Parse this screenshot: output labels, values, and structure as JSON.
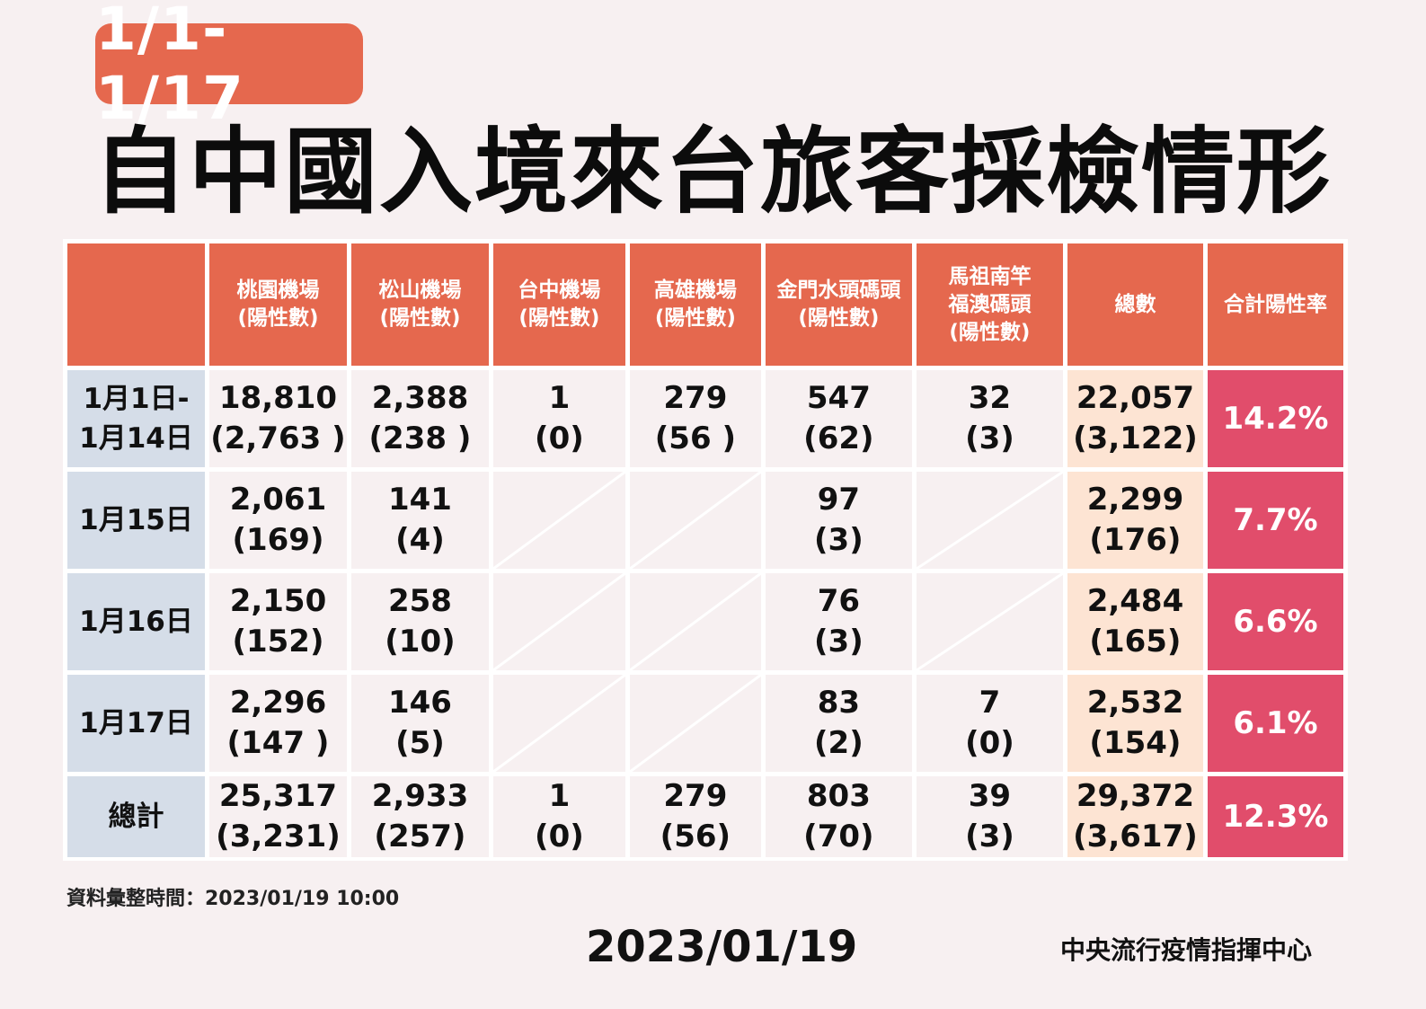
{
  "date_badge": "1/1-1/17",
  "title": "自中國入境來台旅客採檢情形",
  "table": {
    "headers": [
      {
        "lines": [
          ""
        ]
      },
      {
        "lines": [
          "桃園機場",
          "(陽性數)"
        ]
      },
      {
        "lines": [
          "松山機場",
          "(陽性數)"
        ]
      },
      {
        "lines": [
          "台中機場",
          "(陽性數)"
        ]
      },
      {
        "lines": [
          "高雄機場",
          "(陽性數)"
        ]
      },
      {
        "lines": [
          "金門水頭碼頭",
          "(陽性數)"
        ]
      },
      {
        "lines": [
          "馬祖南竿",
          "福澳碼頭",
          "(陽性數)"
        ]
      },
      {
        "lines": [
          "總數"
        ]
      },
      {
        "lines": [
          "合計陽性率"
        ]
      }
    ],
    "rows": [
      {
        "label": [
          "1月1日-",
          "1月14日"
        ],
        "cells": [
          [
            "18,810",
            "(2,763 )"
          ],
          [
            "2,388",
            "(238 )"
          ],
          [
            "1",
            "(0)"
          ],
          [
            "279",
            "(56 )"
          ],
          [
            "547",
            "(62)"
          ],
          [
            "32",
            "(3)"
          ]
        ],
        "total": [
          "22,057",
          "(3,122)"
        ],
        "rate": "14.2%"
      },
      {
        "label": [
          "1月15日"
        ],
        "cells": [
          [
            "2,061",
            "(169)"
          ],
          [
            "141",
            "(4)"
          ],
          null,
          null,
          [
            "97",
            "(3)"
          ],
          null
        ],
        "total": [
          "2,299",
          "(176)"
        ],
        "rate": "7.7%"
      },
      {
        "label": [
          "1月16日"
        ],
        "cells": [
          [
            "2,150",
            "(152)"
          ],
          [
            "258",
            "(10)"
          ],
          null,
          null,
          [
            "76",
            "(3)"
          ],
          null
        ],
        "total": [
          "2,484",
          "(165)"
        ],
        "rate": "6.6%"
      },
      {
        "label": [
          "1月17日"
        ],
        "cells": [
          [
            "2,296",
            "(147 )"
          ],
          [
            "146",
            "(5)"
          ],
          null,
          null,
          [
            "83",
            "(2)"
          ],
          [
            "7",
            "(0)"
          ]
        ],
        "total": [
          "2,532",
          "(154)"
        ],
        "rate": "6.1%"
      },
      {
        "label": [
          "總計"
        ],
        "cells": [
          [
            "25,317",
            "(3,231)"
          ],
          [
            "2,933",
            "(257)"
          ],
          [
            "1",
            "(0)"
          ],
          [
            "279",
            "(56)"
          ],
          [
            "803",
            "(70)"
          ],
          [
            "39",
            "(3)"
          ]
        ],
        "total": [
          "29,372",
          "(3,617)"
        ],
        "rate": "12.3%"
      }
    ]
  },
  "note": "資料彙整時間：2023/01/19 10:00",
  "footer": {
    "date": "2023/01/19",
    "org": "中央流行疫情指揮中心"
  },
  "colors": {
    "header_bg": "#e5684e",
    "row_label_bg": "#d5dde8",
    "total_col_bg": "#fde4d3",
    "rate_col_bg": "#e14d6b",
    "page_bg": "#f7f0f1"
  }
}
